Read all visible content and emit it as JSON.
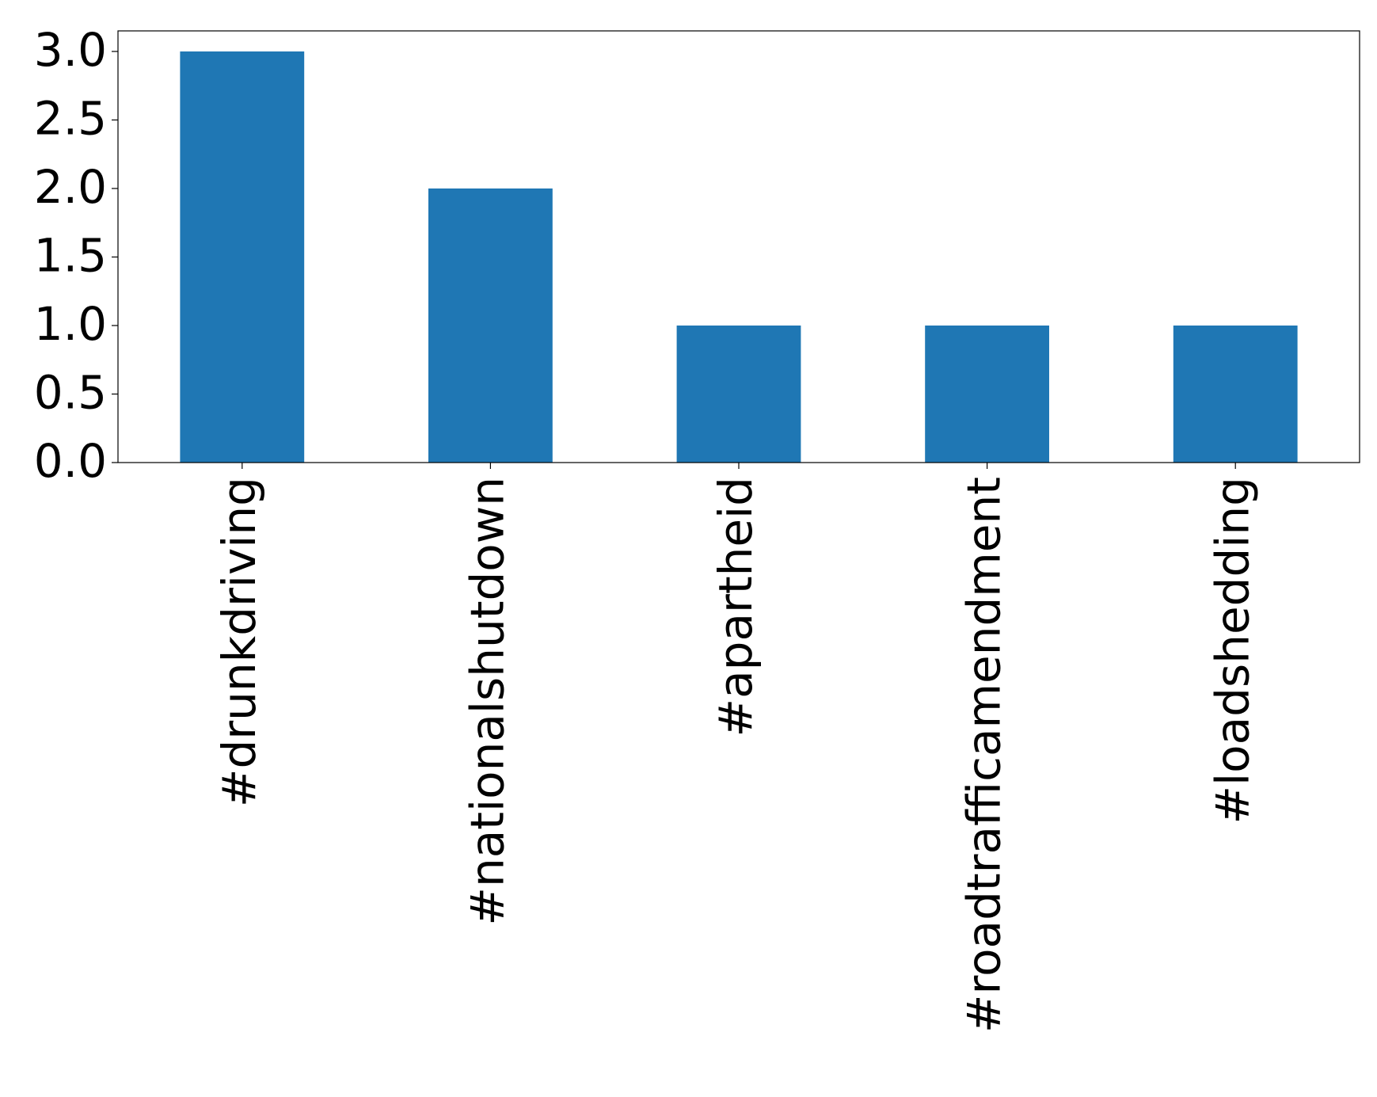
{
  "chart_data": {
    "type": "bar",
    "categories": [
      "#drunkdriving",
      "#nationalshutdown",
      "#apartheid",
      "#roadtrafficamendment",
      "#loadshedding"
    ],
    "values": [
      3,
      2,
      1,
      1,
      1
    ],
    "color": "#1f77b4",
    "ylim": [
      0,
      3.15
    ],
    "yticks": [
      {
        "value": 0,
        "label": "0.0"
      },
      0.5,
      {
        "value": 1,
        "label": "1.0"
      },
      1.5,
      {
        "value": 2,
        "label": "2.0"
      },
      2.5,
      {
        "value": 3,
        "label": "3.0"
      }
    ],
    "grid": false
  }
}
